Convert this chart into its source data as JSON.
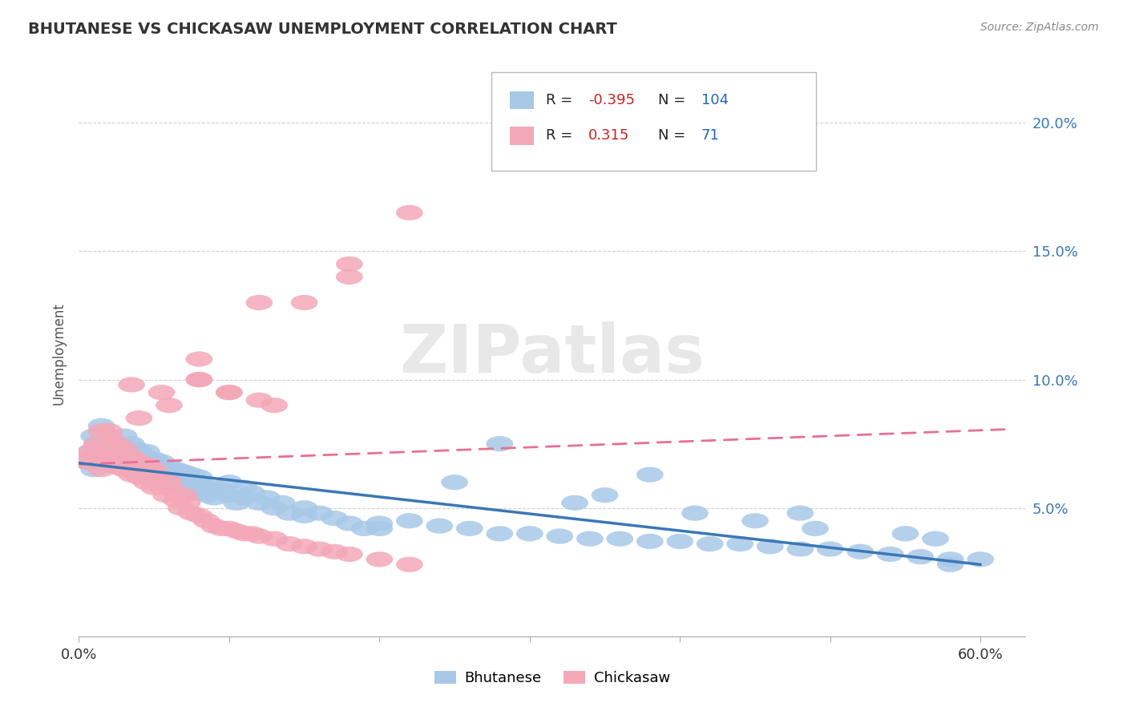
{
  "title": "BHUTANESE VS CHICKASAW UNEMPLOYMENT CORRELATION CHART",
  "source_text": "Source: ZipAtlas.com",
  "ylabel": "Unemployment",
  "xlim": [
    0.0,
    0.63
  ],
  "ylim": [
    0.0,
    0.22
  ],
  "bhutanese_color": "#a8c8e8",
  "chickasaw_color": "#f4a8b8",
  "bhutanese_line_color": "#3a78b5",
  "chickasaw_line_color": "#e87090",
  "watermark": "ZIPatlas",
  "grid_color": "#d0d0d0",
  "bhutanese_x": [
    0.005,
    0.008,
    0.01,
    0.01,
    0.012,
    0.015,
    0.015,
    0.018,
    0.02,
    0.02,
    0.022,
    0.025,
    0.025,
    0.028,
    0.03,
    0.03,
    0.032,
    0.033,
    0.035,
    0.035,
    0.038,
    0.04,
    0.04,
    0.042,
    0.043,
    0.045,
    0.045,
    0.048,
    0.05,
    0.05,
    0.052,
    0.055,
    0.055,
    0.058,
    0.06,
    0.06,
    0.062,
    0.065,
    0.065,
    0.068,
    0.07,
    0.07,
    0.072,
    0.075,
    0.075,
    0.078,
    0.08,
    0.08,
    0.082,
    0.085,
    0.09,
    0.09,
    0.095,
    0.1,
    0.1,
    0.105,
    0.11,
    0.11,
    0.115,
    0.12,
    0.125,
    0.13,
    0.135,
    0.14,
    0.15,
    0.16,
    0.17,
    0.18,
    0.19,
    0.2,
    0.22,
    0.24,
    0.26,
    0.28,
    0.3,
    0.32,
    0.34,
    0.36,
    0.38,
    0.4,
    0.42,
    0.44,
    0.46,
    0.48,
    0.5,
    0.52,
    0.54,
    0.56,
    0.58,
    0.6,
    0.25,
    0.33,
    0.41,
    0.49,
    0.57,
    0.35,
    0.45,
    0.55,
    0.15,
    0.2,
    0.28,
    0.38,
    0.48,
    0.58
  ],
  "bhutanese_y": [
    0.068,
    0.072,
    0.078,
    0.065,
    0.075,
    0.07,
    0.082,
    0.076,
    0.068,
    0.073,
    0.071,
    0.066,
    0.074,
    0.069,
    0.072,
    0.078,
    0.065,
    0.07,
    0.075,
    0.068,
    0.073,
    0.068,
    0.072,
    0.065,
    0.07,
    0.066,
    0.072,
    0.068,
    0.063,
    0.069,
    0.066,
    0.062,
    0.068,
    0.065,
    0.06,
    0.066,
    0.063,
    0.059,
    0.065,
    0.062,
    0.058,
    0.064,
    0.061,
    0.057,
    0.063,
    0.06,
    0.056,
    0.062,
    0.059,
    0.055,
    0.058,
    0.054,
    0.057,
    0.055,
    0.06,
    0.052,
    0.058,
    0.054,
    0.056,
    0.052,
    0.054,
    0.05,
    0.052,
    0.048,
    0.05,
    0.048,
    0.046,
    0.044,
    0.042,
    0.042,
    0.045,
    0.043,
    0.042,
    0.04,
    0.04,
    0.039,
    0.038,
    0.038,
    0.037,
    0.037,
    0.036,
    0.036,
    0.035,
    0.034,
    0.034,
    0.033,
    0.032,
    0.031,
    0.03,
    0.03,
    0.06,
    0.052,
    0.048,
    0.042,
    0.038,
    0.055,
    0.045,
    0.04,
    0.047,
    0.044,
    0.075,
    0.063,
    0.048,
    0.028
  ],
  "chickasaw_x": [
    0.005,
    0.008,
    0.01,
    0.012,
    0.015,
    0.015,
    0.018,
    0.02,
    0.02,
    0.022,
    0.025,
    0.025,
    0.028,
    0.03,
    0.03,
    0.032,
    0.035,
    0.035,
    0.038,
    0.04,
    0.04,
    0.042,
    0.045,
    0.045,
    0.048,
    0.05,
    0.05,
    0.052,
    0.055,
    0.058,
    0.06,
    0.062,
    0.065,
    0.068,
    0.07,
    0.072,
    0.075,
    0.08,
    0.085,
    0.09,
    0.095,
    0.1,
    0.105,
    0.11,
    0.115,
    0.12,
    0.13,
    0.14,
    0.15,
    0.16,
    0.17,
    0.18,
    0.2,
    0.22,
    0.035,
    0.055,
    0.08,
    0.1,
    0.13,
    0.18,
    0.02,
    0.04,
    0.06,
    0.08,
    0.1,
    0.12,
    0.15,
    0.18,
    0.22,
    0.08,
    0.12
  ],
  "chickasaw_y": [
    0.068,
    0.072,
    0.07,
    0.075,
    0.065,
    0.08,
    0.073,
    0.068,
    0.078,
    0.072,
    0.066,
    0.075,
    0.07,
    0.065,
    0.073,
    0.068,
    0.063,
    0.07,
    0.066,
    0.062,
    0.068,
    0.065,
    0.06,
    0.067,
    0.063,
    0.058,
    0.065,
    0.062,
    0.058,
    0.055,
    0.06,
    0.057,
    0.053,
    0.05,
    0.055,
    0.052,
    0.048,
    0.047,
    0.045,
    0.043,
    0.042,
    0.042,
    0.041,
    0.04,
    0.04,
    0.039,
    0.038,
    0.036,
    0.035,
    0.034,
    0.033,
    0.032,
    0.03,
    0.028,
    0.098,
    0.095,
    0.1,
    0.095,
    0.09,
    0.14,
    0.08,
    0.085,
    0.09,
    0.1,
    0.095,
    0.092,
    0.13,
    0.145,
    0.165,
    0.108,
    0.13
  ]
}
